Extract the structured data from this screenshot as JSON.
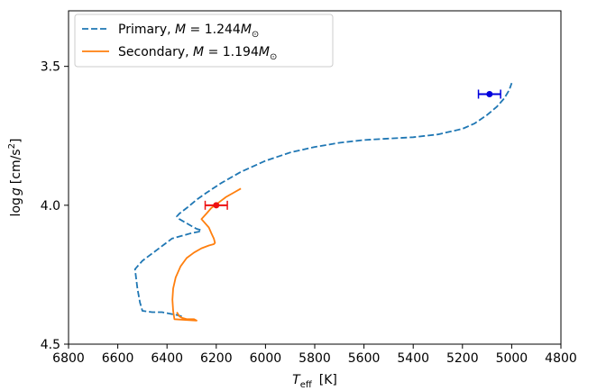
{
  "chart_data": {
    "type": "line",
    "xlabel": {
      "main": "T",
      "sub": "eff",
      "unit": "[K]"
    },
    "ylabel": {
      "pre": "log",
      "italic": "g",
      "unit": "[cm/s",
      "sup": "2",
      "close": "]"
    },
    "xlim": [
      6800,
      4800
    ],
    "ylim": [
      4.5,
      3.3
    ],
    "xticks": [
      6800,
      6600,
      6400,
      6200,
      6000,
      5800,
      5600,
      5400,
      5200,
      5000,
      4800
    ],
    "yticks": [
      3.5,
      4.0,
      4.5
    ],
    "ytick_labels": [
      "3.5",
      "4.0",
      "4.5"
    ],
    "legend_position": "upper-left",
    "series": [
      {
        "name": "Primary, M = 1.244M⊙",
        "legend": {
          "pre": "Primary, ",
          "var": "M",
          "eq": " = 1.244",
          "var2": "M",
          "sub": "⊙"
        },
        "color": "#1f77b4",
        "dash": "dashed",
        "x": [
          6340,
          6360,
          6390,
          6420,
          6460,
          6500,
          6510,
          6520,
          6530,
          6520,
          6500,
          6470,
          6440,
          6410,
          6380,
          6340,
          6300,
          6270,
          6260,
          6280,
          6300,
          6330,
          6350,
          6360,
          6350,
          6320,
          6280,
          6240,
          6180,
          6100,
          6000,
          5900,
          5800,
          5700,
          5600,
          5500,
          5400,
          5300,
          5200,
          5150,
          5100,
          5060,
          5030,
          5010,
          5000
        ],
        "y": [
          4.4,
          4.395,
          4.39,
          4.385,
          4.385,
          4.38,
          4.35,
          4.3,
          4.23,
          4.22,
          4.2,
          4.18,
          4.16,
          4.14,
          4.12,
          4.11,
          4.1,
          4.095,
          4.09,
          4.085,
          4.075,
          4.06,
          4.05,
          4.04,
          4.03,
          4.01,
          3.98,
          3.955,
          3.92,
          3.88,
          3.84,
          3.81,
          3.79,
          3.775,
          3.765,
          3.76,
          3.755,
          3.745,
          3.725,
          3.705,
          3.675,
          3.645,
          3.615,
          3.585,
          3.56
        ]
      },
      {
        "name": "Secondary, M = 1.194M⊙",
        "legend": {
          "pre": "Secondary, ",
          "var": "M",
          "eq": " = 1.194",
          "var2": "M",
          "sub": "⊙"
        },
        "color": "#ff7f0e",
        "dash": "solid",
        "x": [
          6360,
          6350,
          6340,
          6320,
          6300,
          6290,
          6280,
          6370,
          6375,
          6378,
          6375,
          6365,
          6345,
          6320,
          6290,
          6260,
          6230,
          6210,
          6205,
          6210,
          6220,
          6230,
          6260,
          6240,
          6220,
          6190,
          6160,
          6130,
          6100
        ],
        "y": [
          4.385,
          4.4,
          4.405,
          4.41,
          4.41,
          4.41,
          4.415,
          4.41,
          4.38,
          4.34,
          4.3,
          4.26,
          4.22,
          4.19,
          4.17,
          4.155,
          4.145,
          4.14,
          4.135,
          4.12,
          4.1,
          4.08,
          4.05,
          4.03,
          4.01,
          3.99,
          3.97,
          3.955,
          3.94
        ]
      }
    ],
    "points": [
      {
        "x": 5090,
        "y": 3.6,
        "xerr": 45,
        "color": "#0000dd"
      },
      {
        "x": 6200,
        "y": 4.0,
        "xerr": 45,
        "color": "#ee1111"
      }
    ]
  }
}
